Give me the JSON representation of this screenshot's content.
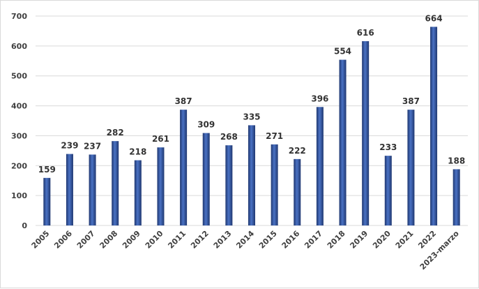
{
  "chart_data": {
    "type": "bar",
    "categories": [
      "2005",
      "2006",
      "2007",
      "2008",
      "2009",
      "2010",
      "2011",
      "2012",
      "2013",
      "2014",
      "2015",
      "2016",
      "2017",
      "2018",
      "2019",
      "2020",
      "2021",
      "2022",
      "2023-marzo"
    ],
    "values": [
      159,
      239,
      237,
      282,
      218,
      261,
      387,
      309,
      268,
      335,
      271,
      222,
      396,
      554,
      616,
      233,
      387,
      664,
      188
    ],
    "ylim": [
      0,
      700
    ],
    "yticks": [
      0,
      100,
      200,
      300,
      400,
      500,
      600,
      700
    ],
    "grid": true,
    "data_labels": true,
    "colors": {
      "bar_dark": "#1f3770",
      "bar_light": "#4a72c4",
      "grid": "#d9d9d9"
    }
  }
}
